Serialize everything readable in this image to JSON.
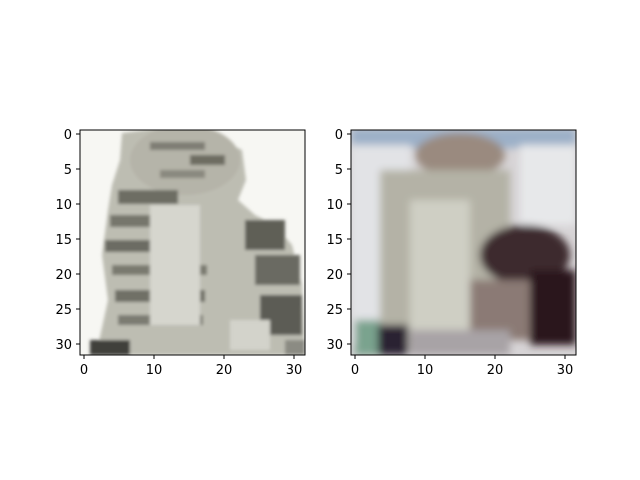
{
  "figure": {
    "background": "#ffffff",
    "axis_color": "#000000",
    "panels": [
      {
        "id": "left",
        "content": "grayscale tabby cat photo, 32x32 pixels",
        "xticks": [
          "0",
          "10",
          "20",
          "30"
        ],
        "yticks": [
          "0",
          "5",
          "10",
          "15",
          "20",
          "25",
          "30"
        ]
      },
      {
        "id": "right",
        "content": "blurry reconstructed image, 32x32 pixels",
        "xticks": [
          "0",
          "10",
          "20",
          "30"
        ],
        "yticks": [
          "0",
          "5",
          "10",
          "15",
          "20",
          "25",
          "30"
        ]
      }
    ]
  }
}
